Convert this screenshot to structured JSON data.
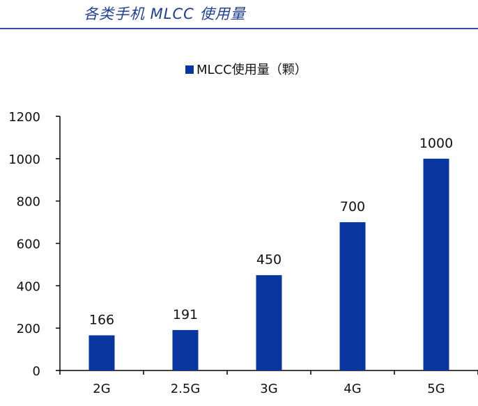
{
  "header": {
    "title": "各类手机 MLCC 使用量"
  },
  "colors": {
    "bar": "#0a36a0",
    "axis": "#000000",
    "header_text": "#1f3f8f",
    "header_rule": "#2f4f9f"
  },
  "chart_data": {
    "type": "bar",
    "title": "",
    "xlabel": "",
    "ylabel": "",
    "categories": [
      "2G",
      "2.5G",
      "3G",
      "4G",
      "5G"
    ],
    "series": [
      {
        "name": "MLCC使用量（颗）",
        "values": [
          166,
          191,
          450,
          700,
          1000
        ]
      }
    ],
    "data_labels": [
      "166",
      "191",
      "450",
      "700",
      "1000"
    ],
    "ylim": [
      0,
      1200
    ],
    "yticks": [
      0,
      200,
      400,
      600,
      800,
      1000,
      1200
    ],
    "ytick_labels": [
      "0",
      "200",
      "400",
      "600",
      "800",
      "1000",
      "1200"
    ],
    "grid": false,
    "legend_position": "top-center"
  }
}
